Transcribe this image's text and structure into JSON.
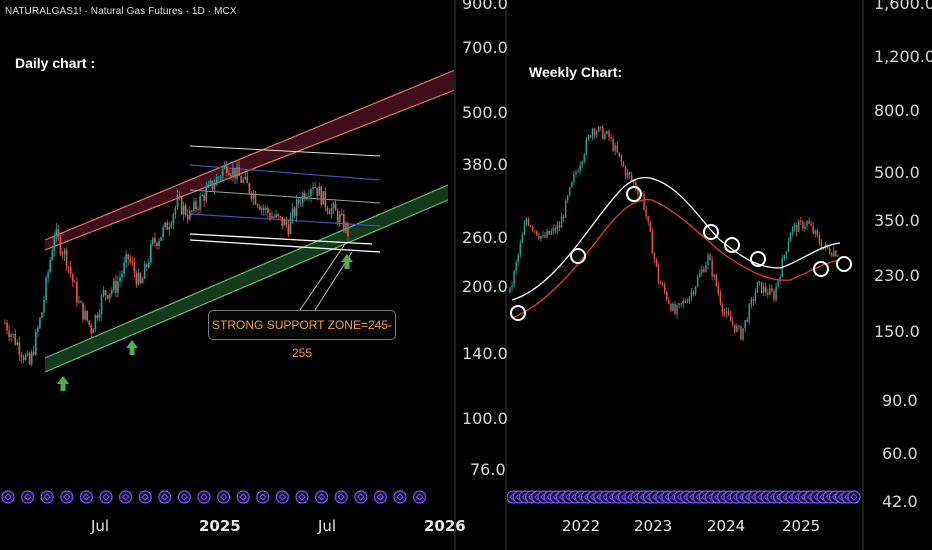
{
  "header": {
    "symbol_line": "NATURALGAS1! · Natural Gas Futures · 1D · MCX"
  },
  "daily": {
    "title": "Daily chart :",
    "annotation": "STRONG SUPPORT ZONE=245-255",
    "x_ticks": [
      "Jul",
      "2025",
      "Jul",
      "2026"
    ],
    "y_ticks": [
      "900.0",
      "700.0",
      "500.0",
      "380.0",
      "260.0",
      "200.0",
      "140.0",
      "100.0",
      "76.0"
    ]
  },
  "weekly": {
    "title": "Weekly Chart:",
    "x_ticks": [
      "2022",
      "2023",
      "2024",
      "2025"
    ],
    "y_ticks": [
      "1,600.0",
      "1,200.0",
      "800.0",
      "500.0",
      "350.0",
      "230.0",
      "150.0",
      "90.0",
      "60.0",
      "42.0"
    ]
  },
  "colors": {
    "up": "#26a69a",
    "down": "#ef5350",
    "upper_channel": "#c2185b",
    "lower_channel": "#2e7d32",
    "support_arrow": "#4caf50",
    "annotation_text": "#f0a020",
    "ma_fast": "#ffffff",
    "ma_slow": "#e53935",
    "event_icons": "#7c4dff"
  },
  "chart_data": [
    {
      "type": "candlestick",
      "title": "Daily chart :",
      "timeframe": "1D",
      "x_ticks": [
        "Jul",
        "2025",
        "Jul",
        "2026"
      ],
      "y_scale": "log",
      "y_ticks": [
        900,
        700,
        500,
        380,
        260,
        200,
        140,
        100,
        76
      ],
      "ylim": [
        68,
        950
      ],
      "close_series": [
        {
          "x": "2024-03",
          "close": 165
        },
        {
          "x": "2024-04",
          "close": 148
        },
        {
          "x": "2024-05",
          "close": 132
        },
        {
          "x": "2024-05-20",
          "close": 175
        },
        {
          "x": "2024-06-10",
          "close": 265
        },
        {
          "x": "2024-06-25",
          "close": 232
        },
        {
          "x": "2024-07-15",
          "close": 182
        },
        {
          "x": "2024-08-01",
          "close": 160
        },
        {
          "x": "2024-08-20",
          "close": 192
        },
        {
          "x": "2024-09-10",
          "close": 200
        },
        {
          "x": "2024-10-01",
          "close": 232
        },
        {
          "x": "2024-10-20",
          "close": 200
        },
        {
          "x": "2024-11-10",
          "close": 250
        },
        {
          "x": "2024-12-01",
          "close": 270
        },
        {
          "x": "2024-12-20",
          "close": 310
        },
        {
          "x": "2025-01-10",
          "close": 290
        },
        {
          "x": "2025-01-25",
          "close": 320
        },
        {
          "x": "2025-02-10",
          "close": 345
        },
        {
          "x": "2025-02-25",
          "close": 380
        },
        {
          "x": "2025-03-10",
          "close": 355
        },
        {
          "x": "2025-03-25",
          "close": 330
        },
        {
          "x": "2025-04-15",
          "close": 300
        },
        {
          "x": "2025-05-01",
          "close": 285
        },
        {
          "x": "2025-05-20",
          "close": 275
        },
        {
          "x": "2025-06-05",
          "close": 320
        },
        {
          "x": "2025-06-20",
          "close": 345
        },
        {
          "x": "2025-07-05",
          "close": 310
        },
        {
          "x": "2025-07-20",
          "close": 290
        },
        {
          "x": "2025-08-01",
          "close": 262
        }
      ],
      "annotations": [
        {
          "text": "STRONG SUPPORT ZONE=245-255",
          "low": 245,
          "high": 255
        }
      ]
    },
    {
      "type": "candlestick",
      "title": "Weekly Chart:",
      "timeframe": "1W",
      "x_ticks": [
        "2022",
        "2023",
        "2024",
        "2025"
      ],
      "y_scale": "log",
      "y_ticks": [
        1600,
        1200,
        800,
        500,
        350,
        230,
        150,
        90,
        60,
        42
      ],
      "ylim": [
        40,
        1800
      ],
      "close_series": [
        {
          "x": "2021-06",
          "close": 200
        },
        {
          "x": "2021-09",
          "close": 350
        },
        {
          "x": "2021-11",
          "close": 300
        },
        {
          "x": "2022-02",
          "close": 330
        },
        {
          "x": "2022-04",
          "close": 500
        },
        {
          "x": "2022-06",
          "close": 700
        },
        {
          "x": "2022-08",
          "close": 650
        },
        {
          "x": "2022-10",
          "close": 500
        },
        {
          "x": "2022-12",
          "close": 420
        },
        {
          "x": "2023-02",
          "close": 220
        },
        {
          "x": "2023-04",
          "close": 170
        },
        {
          "x": "2023-07",
          "close": 200
        },
        {
          "x": "2023-10",
          "close": 260
        },
        {
          "x": "2024-01",
          "close": 170
        },
        {
          "x": "2024-03",
          "close": 145
        },
        {
          "x": "2024-06",
          "close": 210
        },
        {
          "x": "2024-09",
          "close": 195
        },
        {
          "x": "2024-12",
          "close": 320
        },
        {
          "x": "2025-03",
          "close": 340
        },
        {
          "x": "2025-06",
          "close": 280
        },
        {
          "x": "2025-08",
          "close": 270
        }
      ]
    }
  ]
}
